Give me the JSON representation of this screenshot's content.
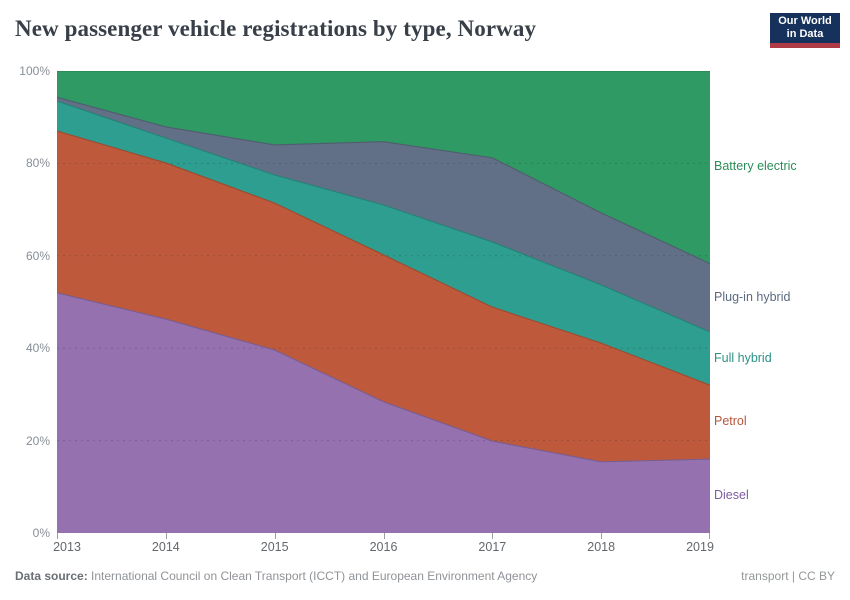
{
  "header": {
    "title": "New passenger vehicle registrations by type, Norway",
    "logo": {
      "line1": "Our World",
      "line2": "in Data",
      "bg_color": "#16315B",
      "accent_color": "#AF3B47"
    }
  },
  "chart_data": {
    "type": "area",
    "stacked": true,
    "title": "New passenger vehicle registrations by type, Norway",
    "x": [
      2013,
      2014,
      2015,
      2016,
      2017,
      2018,
      2019
    ],
    "series": [
      {
        "name": "Diesel",
        "color": "#9571AF",
        "label_color": "#7E5CA0",
        "values": [
          52.0,
          46.3,
          39.6,
          28.4,
          19.9,
          15.4,
          16.0
        ]
      },
      {
        "name": "Petrol",
        "color": "#BE5A3B",
        "label_color": "#B5563C",
        "values": [
          35.0,
          33.8,
          31.8,
          31.8,
          29.0,
          25.7,
          16.0
        ]
      },
      {
        "name": "Full hybrid",
        "color": "#2E9E90",
        "label_color": "#2B9286",
        "values": [
          6.5,
          5.4,
          6.1,
          10.8,
          14.1,
          12.6,
          11.5
        ]
      },
      {
        "name": "Plug-in hybrid",
        "color": "#627087",
        "label_color": "#5B6B80",
        "values": [
          0.8,
          2.4,
          6.5,
          13.7,
          18.2,
          15.6,
          14.8
        ]
      },
      {
        "name": "Battery electric",
        "color": "#2F9A63",
        "label_color": "#2C8C59",
        "values": [
          5.7,
          12.1,
          16.0,
          15.3,
          18.8,
          30.7,
          41.7
        ]
      }
    ],
    "unit": "%",
    "ylim": [
      0,
      100
    ],
    "yticks": [
      0,
      20,
      40,
      60,
      80,
      100
    ],
    "ytick_labels": [
      "0%",
      "20%",
      "40%",
      "60%",
      "80%",
      "100%"
    ],
    "grid": "dashed-horizontal",
    "legend_position": "right-of-plot"
  },
  "footer": {
    "source_label": "Data source:",
    "source_text": " International Council on Clean Transport (ICCT) and European Environment Agency",
    "right_text": "transport | CC BY"
  }
}
